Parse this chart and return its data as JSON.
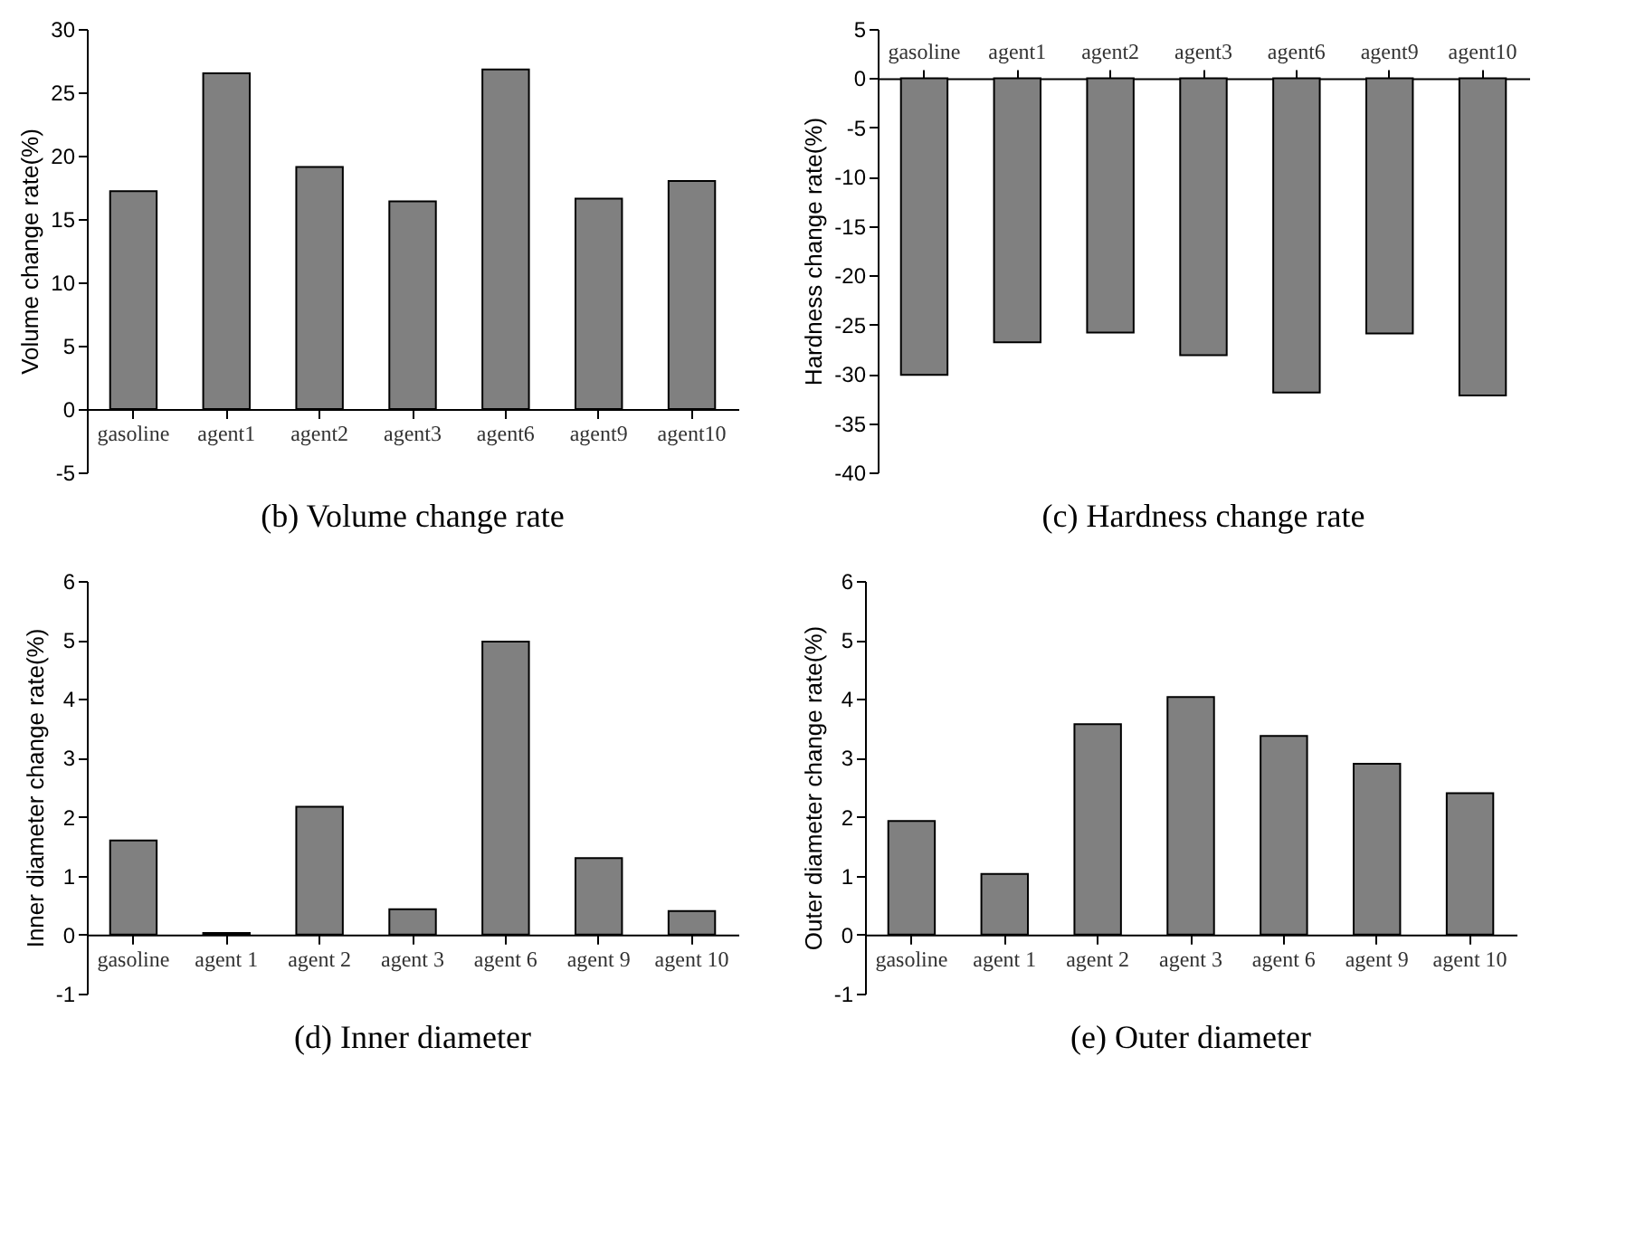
{
  "chart_data": [
    {
      "type": "bar",
      "title": "(b) Volume change rate",
      "ylabel": "Volume change rate(%)",
      "categories": [
        "gasoline",
        "agent1",
        "agent2",
        "agent3",
        "agent6",
        "agent9",
        "agent10"
      ],
      "values": [
        17.2,
        26.5,
        19.1,
        16.4,
        26.8,
        16.6,
        18.0
      ],
      "color": "#808080",
      "ylim": [
        -5,
        30
      ],
      "yticks": [
        -5,
        0,
        5,
        10,
        15,
        20,
        25,
        30
      ]
    },
    {
      "type": "bar",
      "title": "(c) Hardness change rate",
      "ylabel": "Hardness change rate(%)",
      "categories": [
        "gasoline",
        "agent1",
        "agent2",
        "agent3",
        "agent6",
        "agent9",
        "agent10"
      ],
      "values": [
        -30.1,
        -26.8,
        -25.8,
        -28.1,
        -31.9,
        -25.9,
        -32.2
      ],
      "color": "#808080",
      "ylim": [
        -40,
        5
      ],
      "yticks": [
        -40,
        -35,
        -30,
        -25,
        -20,
        -15,
        -10,
        -5,
        0,
        5
      ]
    },
    {
      "type": "bar",
      "title": "(d) Inner diameter",
      "ylabel": "Inner diameter change rate(%)",
      "categories": [
        "gasoline",
        "agent 1",
        "agent 2",
        "agent 3",
        "agent 6",
        "agent 9",
        "agent 10"
      ],
      "values": [
        1.6,
        0.03,
        2.17,
        0.43,
        4.97,
        1.3,
        0.4
      ],
      "color": "#808080",
      "ylim": [
        -1,
        6
      ],
      "yticks": [
        -1,
        0,
        1,
        2,
        3,
        4,
        5,
        6
      ]
    },
    {
      "type": "bar",
      "title": "(e) Outer diameter",
      "ylabel": "Outer diameter change rate(%)",
      "categories": [
        "gasoline",
        "agent 1",
        "agent 2",
        "agent 3",
        "agent 6",
        "agent 9",
        "agent 10"
      ],
      "values": [
        1.93,
        1.03,
        3.57,
        4.03,
        3.37,
        2.9,
        2.4
      ],
      "color": "#808080",
      "ylim": [
        -1,
        6
      ],
      "yticks": [
        -1,
        0,
        1,
        2,
        3,
        4,
        5,
        6
      ]
    }
  ]
}
